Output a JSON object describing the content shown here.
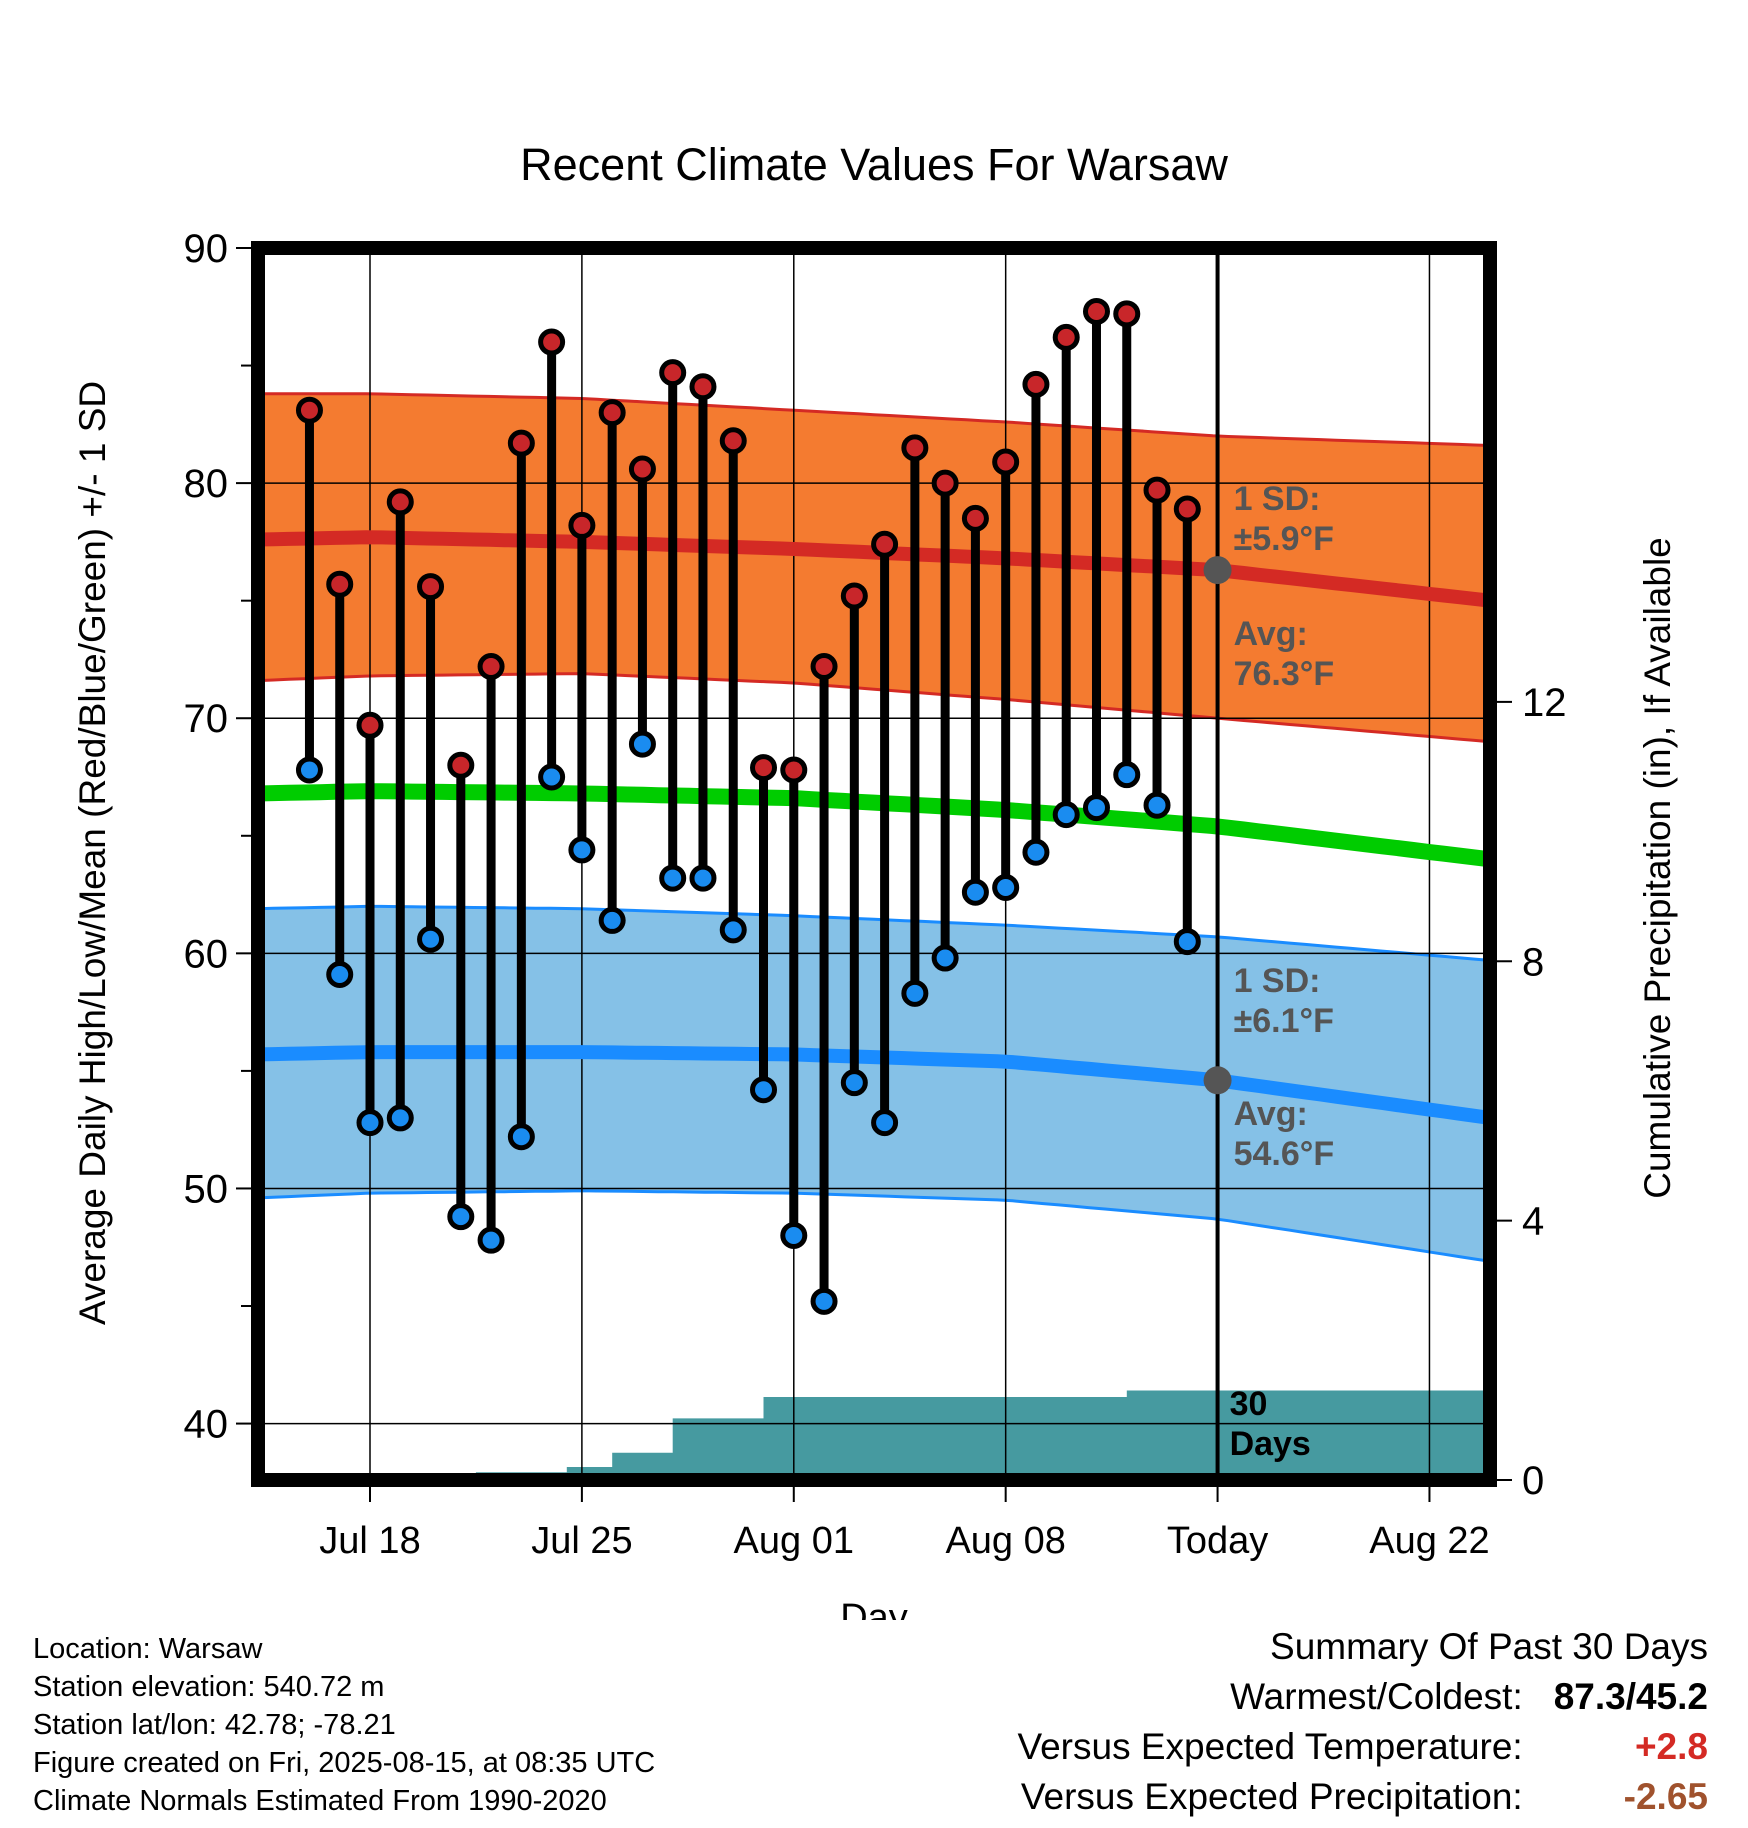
{
  "chart_data": {
    "type": "line",
    "title": "Recent Climate Values For Warsaw",
    "xlabel": "Day",
    "ylabel_left": "Average Daily High/Low/Mean (Red/Blue/Green) +/- 1 SD",
    "ylabel_right": "Cumulative Precipitation (in), If Available",
    "ylim_left": [
      37.6,
      90
    ],
    "ylim_right": [
      0,
      19
    ],
    "x_tick_labels": [
      "Jul 18",
      "Jul 25",
      "Aug 01",
      "Aug 08",
      "Today",
      "Aug 22"
    ],
    "x_tick_days": [
      3,
      10,
      17,
      24,
      31,
      38
    ],
    "x_range_days": [
      -0.7,
      40
    ],
    "y_ticks_left": [
      40,
      50,
      60,
      70,
      80,
      90
    ],
    "y_ticks_right": [
      0,
      4,
      8,
      12
    ],
    "grid": true,
    "today_day": 31,
    "days": [
      1,
      2,
      3,
      4,
      5,
      6,
      7,
      8,
      9,
      10,
      11,
      12,
      13,
      14,
      15,
      16,
      17,
      18,
      19,
      20,
      21,
      22,
      23,
      24,
      25,
      26,
      27,
      28,
      29,
      30
    ],
    "highs": [
      83.1,
      75.7,
      69.7,
      79.2,
      75.6,
      68.0,
      72.2,
      81.7,
      86.0,
      78.2,
      83.0,
      80.6,
      84.7,
      84.1,
      81.8,
      67.9,
      67.8,
      72.2,
      75.2,
      77.4,
      81.5,
      80.0,
      78.5,
      80.9,
      84.2,
      86.2,
      87.3,
      87.2,
      79.7,
      78.9
    ],
    "lows": [
      67.8,
      59.1,
      52.8,
      53.0,
      60.6,
      48.8,
      47.8,
      52.2,
      67.5,
      64.4,
      61.4,
      68.9,
      63.2,
      63.2,
      61.0,
      54.2,
      48.0,
      45.2,
      54.5,
      52.8,
      58.3,
      59.8,
      62.6,
      62.8,
      64.3,
      65.9,
      66.2,
      67.6,
      66.3,
      60.5
    ],
    "normal_high": {
      "days": [
        -0.7,
        3,
        10,
        17,
        24,
        31,
        40
      ],
      "mean": [
        77.6,
        77.7,
        77.5,
        77.2,
        76.8,
        76.3,
        75.0
      ],
      "upper": [
        83.8,
        83.8,
        83.6,
        83.1,
        82.6,
        82.0,
        81.6
      ],
      "lower": [
        71.6,
        71.8,
        71.9,
        71.5,
        70.8,
        70.0,
        69.0
      ]
    },
    "normal_low": {
      "days": [
        -0.7,
        3,
        10,
        17,
        24,
        31,
        40
      ],
      "mean": [
        55.7,
        55.8,
        55.8,
        55.7,
        55.4,
        54.6,
        53.0
      ],
      "upper": [
        61.9,
        62.0,
        61.9,
        61.6,
        61.2,
        60.7,
        59.7
      ],
      "lower": [
        49.6,
        49.8,
        49.9,
        49.8,
        49.5,
        48.7,
        46.9
      ]
    },
    "normal_mean": {
      "days": [
        -0.7,
        3,
        10,
        17,
        24,
        31,
        40
      ],
      "values": [
        66.8,
        66.9,
        66.8,
        66.6,
        66.1,
        65.4,
        64.0
      ]
    },
    "precip_cumulative": {
      "steps": [
        {
          "start": -0.7,
          "end": 3.5,
          "value": 0.0
        },
        {
          "start": 3.5,
          "end": 6.5,
          "value": 0.08
        },
        {
          "start": 6.5,
          "end": 9.5,
          "value": 0.12
        },
        {
          "start": 9.5,
          "end": 11.0,
          "value": 0.2
        },
        {
          "start": 11.0,
          "end": 13.0,
          "value": 0.42
        },
        {
          "start": 13.0,
          "end": 16.0,
          "value": 0.95
        },
        {
          "start": 16.0,
          "end": 28.0,
          "value": 1.28
        },
        {
          "start": 28.0,
          "end": 40.0,
          "value": 1.38
        }
      ]
    },
    "colors": {
      "high_band": "#f47b30",
      "high_line": "#d42a24",
      "low_band": "#85c1e7",
      "low_line": "#1a8cff",
      "mean_line": "#00cc00",
      "precip": "#469aa0",
      "high_dot": "#c8262a",
      "low_dot": "#1a8cf0",
      "annotation": "#555555"
    },
    "annotations": {
      "high_sd": [
        "1 SD:",
        "±5.9°F"
      ],
      "high_avg": [
        "Avg:",
        "76.3°F"
      ],
      "low_sd": [
        "1 SD:",
        "±6.1°F"
      ],
      "low_avg": [
        "Avg:",
        "54.6°F"
      ],
      "window": [
        "30",
        "Days"
      ]
    }
  },
  "footer": {
    "location": "Location: Warsaw",
    "elevation": "Station elevation: 540.72 m",
    "latlon": "Station lat/lon: 42.78; -78.21",
    "created": "Figure created on Fri, 2025-08-15, at 08:35 UTC",
    "normals": "Climate Normals Estimated From 1990-2020"
  },
  "summary": {
    "title": "Summary Of Past 30 Days",
    "warm_cold_label": "Warmest/Coldest:",
    "warm_cold_value": "87.3/45.2",
    "temp_label": "Versus Expected Temperature:",
    "temp_value": "+2.8",
    "temp_color": "#d42a24",
    "precip_label": "Versus Expected Precipitation:",
    "precip_value": "-2.65",
    "precip_color": "#a0522d"
  }
}
